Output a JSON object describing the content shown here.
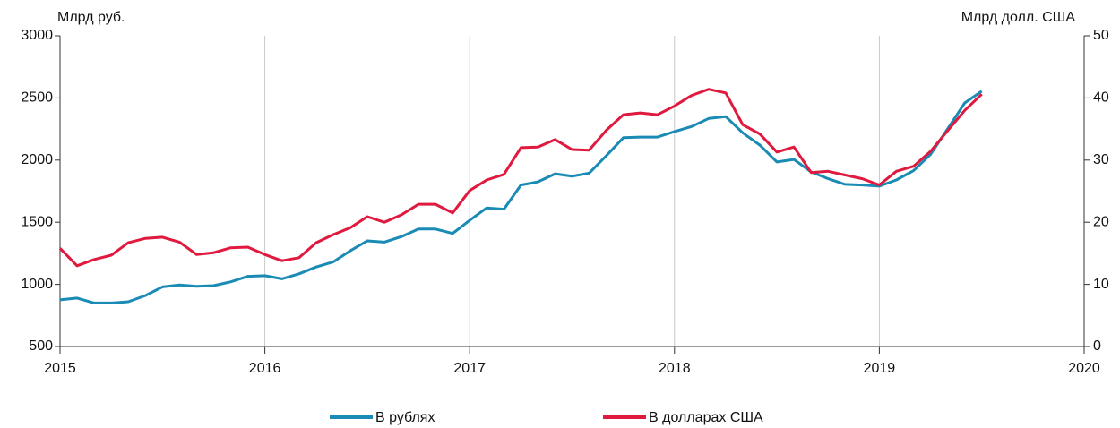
{
  "chart_data": {
    "type": "line",
    "ylabel": "Млрд руб.",
    "y2label": "Млрд долл. США",
    "x": [
      2015,
      2015.083,
      2015.167,
      2015.25,
      2015.333,
      2015.417,
      2015.5,
      2015.583,
      2015.667,
      2015.75,
      2015.833,
      2015.917,
      2016,
      2016.083,
      2016.167,
      2016.25,
      2016.333,
      2016.417,
      2016.5,
      2016.583,
      2016.667,
      2016.75,
      2016.833,
      2016.917,
      2017,
      2017.083,
      2017.167,
      2017.25,
      2017.333,
      2017.417,
      2017.5,
      2017.583,
      2017.667,
      2017.75,
      2017.833,
      2017.917,
      2018,
      2018.083,
      2018.167,
      2018.25,
      2018.333,
      2018.417,
      2018.5,
      2018.583,
      2018.667,
      2018.75,
      2018.833,
      2018.917,
      2019,
      2019.083,
      2019.167,
      2019.25,
      2019.333,
      2019.417,
      2019.5
    ],
    "series": [
      {
        "name": "В рублях",
        "color": "#1a8bb5",
        "axis": "y",
        "values": [
          875,
          890,
          850,
          850,
          860,
          910,
          980,
          995,
          985,
          990,
          1020,
          1065,
          1070,
          1045,
          1085,
          1140,
          1180,
          1270,
          1350,
          1340,
          1385,
          1445,
          1445,
          1410,
          1515,
          1615,
          1605,
          1800,
          1825,
          1890,
          1870,
          1895,
          2035,
          2180,
          2185,
          2185,
          2230,
          2270,
          2335,
          2350,
          2220,
          2120,
          1985,
          2005,
          1905,
          1850,
          1805,
          1800,
          1790,
          1840,
          1915,
          2045,
          2250,
          2460,
          2555
        ]
      },
      {
        "name": "В долларах США",
        "color": "#e0193f",
        "axis": "y2",
        "values": [
          15.8,
          13.0,
          14.0,
          14.7,
          16.7,
          17.4,
          17.6,
          16.8,
          14.8,
          15.1,
          15.9,
          16.0,
          14.8,
          13.8,
          14.3,
          16.7,
          18.0,
          19.1,
          20.9,
          20.0,
          21.2,
          22.9,
          22.9,
          21.5,
          25.1,
          26.8,
          27.7,
          32.0,
          32.1,
          33.3,
          31.7,
          31.6,
          34.8,
          37.3,
          37.6,
          37.3,
          38.7,
          40.4,
          41.4,
          40.8,
          35.7,
          34.2,
          31.3,
          32.1,
          28.0,
          28.2,
          27.6,
          27.0,
          26.0,
          28.2,
          29.0,
          31.4,
          34.7,
          38.0,
          40.6
        ]
      }
    ],
    "xlim": [
      2015,
      2020
    ],
    "xticks": [
      2015,
      2016,
      2017,
      2018,
      2019,
      2020
    ],
    "ylim": [
      500,
      3000
    ],
    "yticks": [
      500,
      1000,
      1500,
      2000,
      2500,
      3000
    ],
    "y2lim": [
      0,
      50
    ],
    "y2ticks": [
      0,
      10,
      20,
      30,
      40,
      50
    ],
    "grid": true
  }
}
